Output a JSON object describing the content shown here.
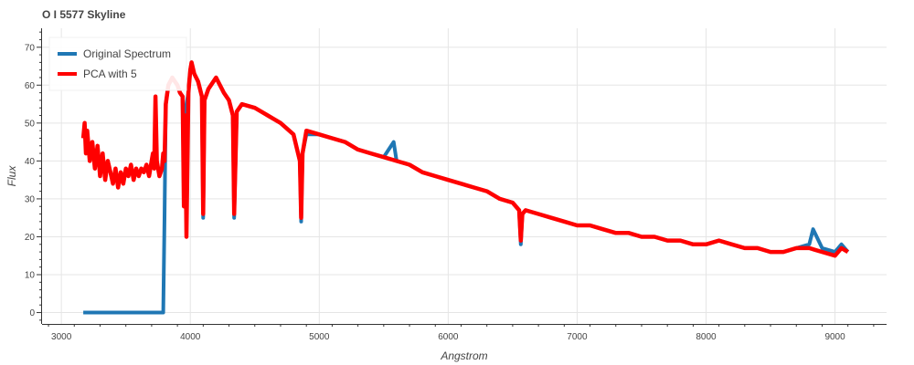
{
  "chart_data": {
    "type": "line",
    "title": "O I 5577 Skyline",
    "xlabel": "Angstrom",
    "ylabel": "Flux",
    "xlim": [
      2850,
      9400
    ],
    "ylim": [
      -3,
      75
    ],
    "xticks": [
      3000,
      4000,
      5000,
      6000,
      7000,
      8000,
      9000
    ],
    "yticks": [
      0,
      10,
      20,
      30,
      40,
      50,
      60,
      70
    ],
    "grid": true,
    "legend_position": "top-left",
    "series": [
      {
        "name": "Original Spectrum",
        "color": "#1f77b4",
        "x": [
          3170,
          3250,
          3400,
          3600,
          3790,
          3800,
          3805,
          3810,
          3830,
          3860,
          3880,
          3900,
          3920,
          3940,
          3950,
          3960,
          3970,
          3985,
          4000,
          4010,
          4030,
          4060,
          4090,
          4100,
          4110,
          4140,
          4200,
          4260,
          4300,
          4330,
          4340,
          4360,
          4400,
          4500,
          4600,
          4700,
          4800,
          4850,
          4860,
          4870,
          4900,
          5000,
          5100,
          5200,
          5300,
          5400,
          5500,
          5577,
          5600,
          5700,
          5800,
          5900,
          6000,
          6100,
          6200,
          6300,
          6400,
          6500,
          6550,
          6563,
          6575,
          6600,
          6700,
          6800,
          6900,
          7000,
          7100,
          7200,
          7300,
          7400,
          7500,
          7600,
          7700,
          7800,
          7900,
          8000,
          8100,
          8200,
          8300,
          8400,
          8500,
          8600,
          8700,
          8800,
          8830,
          8900,
          9000,
          9050,
          9100
        ],
        "values": [
          0,
          0,
          0,
          0,
          0,
          25,
          40,
          55,
          60,
          62,
          61,
          60,
          58,
          57,
          30,
          52,
          55,
          58,
          64,
          66,
          63,
          61,
          57,
          25,
          56,
          59,
          62,
          58,
          56,
          52,
          25,
          53,
          55,
          54,
          52,
          50,
          47,
          40,
          24,
          42,
          47,
          47,
          46,
          45,
          43,
          42,
          41,
          45,
          40,
          39,
          37,
          36,
          35,
          34,
          33,
          32,
          30,
          29,
          27,
          18,
          26,
          27,
          26,
          25,
          24,
          23,
          23,
          22,
          21,
          21,
          20,
          20,
          19,
          19,
          18,
          18,
          19,
          18,
          17,
          17,
          16,
          16,
          17,
          18,
          22,
          17,
          16,
          18,
          16
        ]
      },
      {
        "name": "PCA with 5",
        "color": "#ff0000",
        "x": [
          3170,
          3180,
          3190,
          3200,
          3220,
          3240,
          3260,
          3280,
          3300,
          3320,
          3340,
          3360,
          3380,
          3400,
          3420,
          3440,
          3460,
          3480,
          3500,
          3520,
          3540,
          3560,
          3580,
          3600,
          3620,
          3640,
          3660,
          3680,
          3700,
          3710,
          3720,
          3730,
          3740,
          3750,
          3760,
          3780,
          3790,
          3800,
          3810,
          3830,
          3860,
          3880,
          3900,
          3920,
          3940,
          3950,
          3960,
          3970,
          3985,
          4000,
          4010,
          4030,
          4060,
          4090,
          4100,
          4110,
          4140,
          4200,
          4260,
          4300,
          4330,
          4340,
          4360,
          4400,
          4500,
          4600,
          4700,
          4800,
          4850,
          4860,
          4870,
          4900,
          5000,
          5100,
          5200,
          5300,
          5400,
          5500,
          5600,
          5700,
          5800,
          5900,
          6000,
          6100,
          6200,
          6300,
          6400,
          6500,
          6550,
          6563,
          6575,
          6600,
          6700,
          6800,
          6900,
          7000,
          7100,
          7200,
          7300,
          7400,
          7500,
          7600,
          7700,
          7800,
          7900,
          8000,
          8100,
          8200,
          8300,
          8400,
          8500,
          8600,
          8700,
          8800,
          8900,
          9000,
          9050,
          9100
        ],
        "values": [
          46,
          50,
          42,
          48,
          40,
          45,
          38,
          44,
          36,
          42,
          35,
          40,
          37,
          34,
          38,
          33,
          37,
          34,
          38,
          36,
          39,
          35,
          38,
          36,
          38,
          37,
          39,
          36,
          40,
          42,
          38,
          57,
          40,
          38,
          36,
          38,
          42,
          40,
          55,
          60,
          62,
          61,
          60,
          58,
          57,
          28,
          52,
          20,
          58,
          64,
          66,
          63,
          61,
          57,
          26,
          56,
          59,
          62,
          58,
          56,
          52,
          26,
          53,
          55,
          54,
          52,
          50,
          47,
          40,
          25,
          42,
          48,
          47,
          46,
          45,
          43,
          42,
          41,
          40,
          39,
          37,
          36,
          35,
          34,
          33,
          32,
          30,
          29,
          27,
          19,
          26,
          27,
          26,
          25,
          24,
          23,
          23,
          22,
          21,
          21,
          20,
          20,
          19,
          19,
          18,
          18,
          19,
          18,
          17,
          17,
          16,
          16,
          17,
          17,
          16,
          15,
          17,
          16
        ]
      }
    ]
  }
}
